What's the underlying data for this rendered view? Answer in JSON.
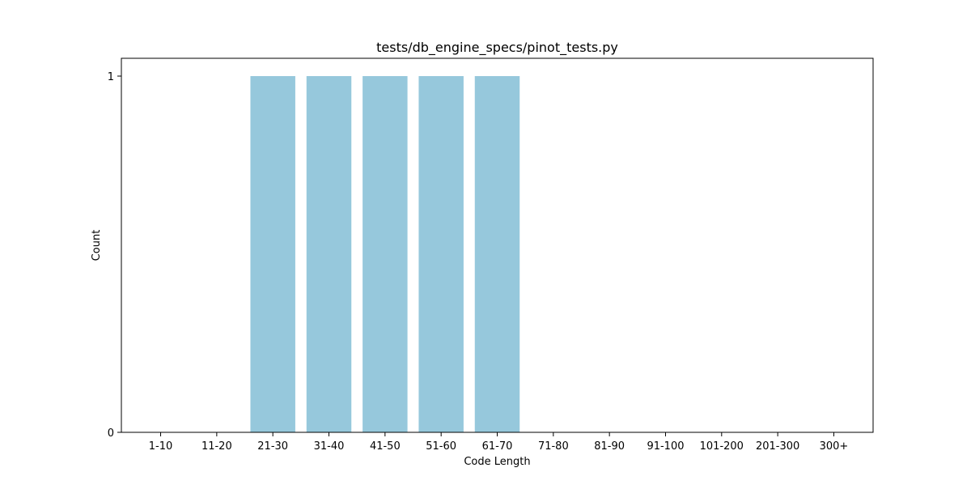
{
  "chart_data": {
    "type": "bar",
    "title": "tests/db_engine_specs/pinot_tests.py",
    "xlabel": "Code Length",
    "ylabel": "Count",
    "categories": [
      "1-10",
      "11-20",
      "21-30",
      "31-40",
      "41-50",
      "51-60",
      "61-70",
      "71-80",
      "81-90",
      "91-100",
      "101-200",
      "201-300",
      "300+"
    ],
    "values": [
      0,
      0,
      1,
      1,
      1,
      1,
      1,
      0,
      0,
      0,
      0,
      0,
      0
    ],
    "ylim": [
      0,
      1.05
    ],
    "yticks": [
      0,
      1
    ],
    "grid": false,
    "legend": "none",
    "bar_color": "#96c8dc"
  }
}
